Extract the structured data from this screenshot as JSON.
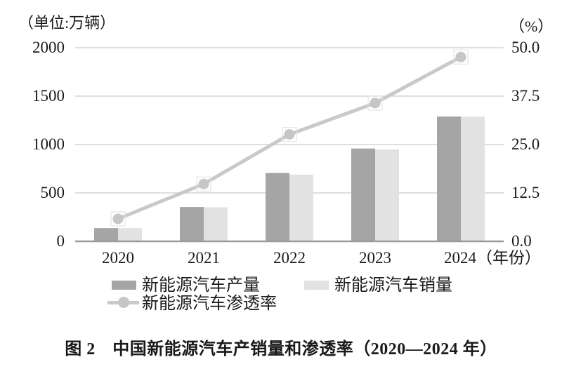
{
  "figure": {
    "caption": "图 2　中国新能源汽车产销量和渗透率（2020—2024 年）"
  },
  "legend": {
    "production": "新能源汽车产量",
    "sales": "新能源汽车销量",
    "penetration": "新能源汽车渗透率"
  },
  "colors": {
    "production_bar": "#a5a5a5",
    "sales_bar": "#e2e2e2",
    "line": "#c9c9c9",
    "marker": "#c6c6c6",
    "marker_halo": "#e4e4e4",
    "gridline": "#c9c9c9",
    "baseline": "#9b9b9b",
    "text": "#1a1a1a"
  },
  "chart_data": {
    "type": "bar",
    "combo": "grouped bars (left axis) + line with circle markers (right axis)",
    "title": "中国新能源汽车产销量和渗透率（2020—2024 年）",
    "categories": [
      "2020",
      "2021",
      "2022",
      "2023",
      "2024"
    ],
    "x_suffix": "（年份）",
    "grid": true,
    "legend_position": "bottom",
    "left_axis": {
      "unit": "（单位:万辆）",
      "max": 2000,
      "ticks": [
        0,
        500,
        1000,
        1500,
        2000
      ],
      "labels": [
        "0",
        "500",
        "1000",
        "1500",
        "2000"
      ]
    },
    "right_axis": {
      "unit": "（%）",
      "max": 50,
      "ticks": [
        0,
        12.5,
        25,
        37.5,
        50
      ],
      "labels": [
        "0.0",
        "12.5",
        "25.0",
        "37.5",
        "50.0"
      ]
    },
    "series": [
      {
        "name": "新能源汽车产量",
        "type": "bar",
        "axis": "left",
        "values": [
          136.6,
          354.5,
          705.8,
          958.7,
          1288.8
        ]
      },
      {
        "name": "新能源汽车销量",
        "type": "bar",
        "axis": "left",
        "values": [
          136.7,
          352.1,
          688.7,
          949.5,
          1286.6
        ]
      },
      {
        "name": "新能源汽车渗透率",
        "type": "line",
        "axis": "right",
        "values": [
          5.8,
          14.8,
          27.6,
          35.7,
          47.6
        ]
      }
    ]
  }
}
